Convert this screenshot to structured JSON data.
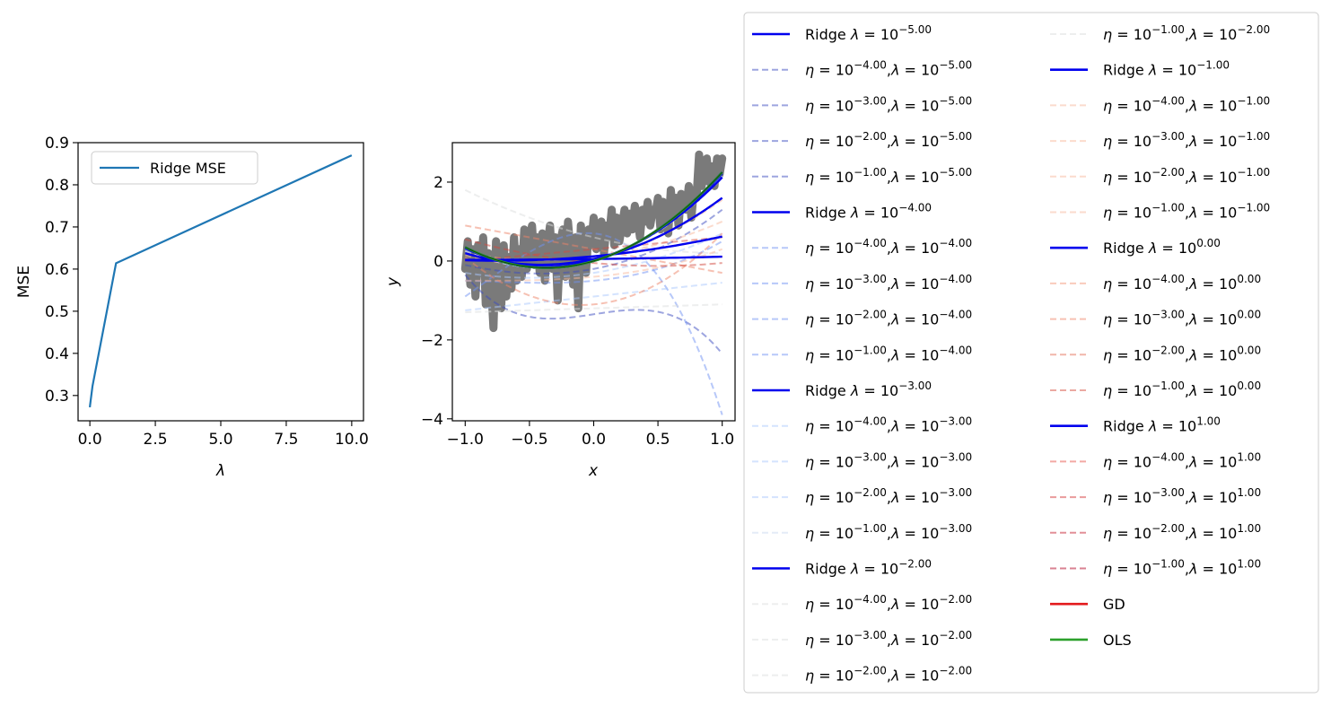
{
  "chart_data": [
    {
      "type": "line",
      "xlabel": "λ",
      "ylabel": "MSE",
      "xlim": [
        -0.45,
        10.45
      ],
      "ylim": [
        0.24,
        0.9
      ],
      "xticks": [
        0,
        2.5,
        5,
        7.5,
        10
      ],
      "xtick_labels": [
        "0.0",
        "2.5",
        "5.0",
        "7.5",
        "10.0"
      ],
      "yticks": [
        0.3,
        0.4,
        0.5,
        0.6,
        0.7,
        0.8,
        0.9
      ],
      "ytick_labels": [
        "0.3",
        "0.4",
        "0.5",
        "0.6",
        "0.7",
        "0.8",
        "0.9"
      ],
      "legend_position": "upper-left",
      "series": [
        {
          "name": "Ridge MSE",
          "color": "#1f77b4",
          "x": [
            1e-05,
            0.0001,
            0.001,
            0.01,
            0.1,
            1,
            10
          ],
          "y": [
            0.272,
            0.272,
            0.273,
            0.278,
            0.322,
            0.614,
            0.87
          ]
        }
      ]
    },
    {
      "type": "line",
      "xlabel": "x",
      "ylabel": "y",
      "xlim": [
        -1.1,
        1.1
      ],
      "ylim": [
        -4.05,
        3.0
      ],
      "xticks": [
        -1.0,
        -0.5,
        0.0,
        0.5,
        1.0
      ],
      "xtick_labels": [
        "−1.0",
        "−0.5",
        "0.0",
        "0.5",
        "1.0"
      ],
      "yticks": [
        -4,
        -2,
        0,
        2
      ],
      "ytick_labels": [
        "−4",
        "−2",
        "0",
        "2"
      ],
      "data_points": {
        "color": "#7a7a7a",
        "x": [
          -1.0,
          -0.98,
          -0.96,
          -0.94,
          -0.92,
          -0.9,
          -0.88,
          -0.86,
          -0.84,
          -0.82,
          -0.8,
          -0.78,
          -0.76,
          -0.74,
          -0.72,
          -0.7,
          -0.68,
          -0.66,
          -0.64,
          -0.62,
          -0.6,
          -0.58,
          -0.56,
          -0.54,
          -0.52,
          -0.5,
          -0.48,
          -0.46,
          -0.44,
          -0.42,
          -0.4,
          -0.38,
          -0.36,
          -0.34,
          -0.32,
          -0.3,
          -0.28,
          -0.26,
          -0.24,
          -0.22,
          -0.2,
          -0.18,
          -0.16,
          -0.14,
          -0.12,
          -0.1,
          -0.08,
          -0.06,
          -0.04,
          -0.02,
          0.0,
          0.02,
          0.04,
          0.06,
          0.08,
          0.1,
          0.12,
          0.14,
          0.16,
          0.18,
          0.2,
          0.22,
          0.24,
          0.26,
          0.28,
          0.3,
          0.32,
          0.34,
          0.36,
          0.38,
          0.4,
          0.42,
          0.44,
          0.46,
          0.48,
          0.5,
          0.52,
          0.54,
          0.56,
          0.58,
          0.6,
          0.62,
          0.64,
          0.66,
          0.68,
          0.7,
          0.72,
          0.74,
          0.76,
          0.78,
          0.8,
          0.82,
          0.84,
          0.86,
          0.88,
          0.9,
          0.92,
          0.94,
          0.96,
          0.98,
          1.0
        ],
        "y": [
          -0.2,
          0.5,
          -0.6,
          0.3,
          -0.9,
          0.4,
          -0.3,
          0.6,
          -1.1,
          0.2,
          -0.5,
          -1.7,
          0.5,
          -0.4,
          -1.2,
          0.4,
          -0.9,
          0.1,
          -0.7,
          0.6,
          -0.5,
          0.3,
          -0.4,
          0.8,
          -0.2,
          0.5,
          0.9,
          -0.1,
          0.6,
          -0.3,
          0.7,
          -0.5,
          0.4,
          0.9,
          -0.2,
          0.6,
          -1.0,
          0.5,
          0.8,
          -0.4,
          1.0,
          0.2,
          -0.6,
          0.6,
          -1.2,
          0.9,
          0.3,
          -0.3,
          0.8,
          0.4,
          1.1,
          0.3,
          0.8,
          1.0,
          0.2,
          0.9,
          0.6,
          1.3,
          0.4,
          1.1,
          0.5,
          0.9,
          1.3,
          0.7,
          1.2,
          0.8,
          1.4,
          1.1,
          0.6,
          1.3,
          1.0,
          1.5,
          0.9,
          1.3,
          1.2,
          1.6,
          0.8,
          1.5,
          1.4,
          0.7,
          1.8,
          1.2,
          1.6,
          0.9,
          1.7,
          1.5,
          1.3,
          1.9,
          1.1,
          1.8,
          1.6,
          2.7,
          1.9,
          2.2,
          2.6,
          2.0,
          2.4,
          1.9,
          2.6,
          2.2,
          2.6
        ]
      },
      "ridge_curves": [
        {
          "name": "Ridge λ = 10^-5.00",
          "color": "#0000ee",
          "coef": [
            0.0,
            0.95,
            1.3,
            0.0
          ]
        },
        {
          "name": "Ridge λ = 10^-4.00",
          "color": "#0000ee",
          "coef": [
            0.0,
            0.95,
            1.3,
            0.0
          ]
        },
        {
          "name": "Ridge λ = 10^-3.00",
          "color": "#0000ee",
          "coef": [
            0.0,
            0.94,
            1.28,
            0.0
          ]
        },
        {
          "name": "Ridge λ = 10^-2.00",
          "color": "#0000ee",
          "coef": [
            0.02,
            0.9,
            1.2,
            0.0
          ]
        },
        {
          "name": "Ridge λ = 10^-1.00",
          "color": "#0000ee",
          "coef": [
            0.05,
            0.7,
            0.85,
            0.0
          ]
        },
        {
          "name": "Ridge λ = 10^0.00",
          "color": "#0000ee",
          "coef": [
            0.12,
            0.3,
            0.2,
            0.0
          ]
        },
        {
          "name": "Ridge λ = 10^1.00",
          "color": "#0000ee",
          "coef": [
            0.05,
            0.04,
            0.02,
            0.0
          ]
        }
      ],
      "gd_curves": [
        {
          "name": "η = 10^-4.00, λ = 10^-5.00",
          "color": "#3b4cc0",
          "alpha": 0.5,
          "coef": [
            -1.35,
            0.5,
            0.0,
            -1.5
          ]
        },
        {
          "name": "η = 10^-3.00, λ = 10^-5.00",
          "color": "#3b4cc0",
          "alpha": 0.5,
          "coef": [
            -0.2,
            0.6,
            0.8,
            0.1
          ]
        },
        {
          "name": "η = 10^-2.00, λ = 10^-5.00",
          "color": "#3b4cc0",
          "alpha": 0.5,
          "coef": [
            0.0,
            0.9,
            1.2,
            0.05
          ]
        },
        {
          "name": "η = 10^-1.00, λ = 10^-5.00",
          "color": "#3b4cc0",
          "alpha": 0.5,
          "coef": [
            0.0,
            0.95,
            1.3,
            0.0
          ]
        },
        {
          "name": "η = 10^-4.00, λ = 10^-4.00",
          "color": "#6f92f3",
          "alpha": 0.5,
          "coef": [
            -0.5,
            0.3,
            0.5,
            0.2
          ]
        },
        {
          "name": "η = 10^-3.00, λ = 10^-4.00",
          "color": "#6f92f3",
          "alpha": 0.5,
          "coef": [
            0.7,
            -0.3,
            -3.1,
            -1.2
          ]
        },
        {
          "name": "η = 10^-2.00, λ = 10^-4.00",
          "color": "#6f92f3",
          "alpha": 0.5,
          "coef": [
            0.0,
            0.9,
            1.2,
            0.05
          ]
        },
        {
          "name": "η = 10^-1.00, λ = 10^-4.00",
          "color": "#6f92f3",
          "alpha": 0.5,
          "coef": [
            0.0,
            0.95,
            1.3,
            0.0
          ]
        },
        {
          "name": "η = 10^-4.00, λ = 10^-3.00",
          "color": "#aac7fd",
          "alpha": 0.5,
          "coef": [
            -0.9,
            0.35,
            0.0,
            0.0
          ]
        },
        {
          "name": "η = 10^-3.00, λ = 10^-3.00",
          "color": "#aac7fd",
          "alpha": 0.5,
          "coef": [
            -0.3,
            0.5,
            0.5,
            0.0
          ]
        },
        {
          "name": "η = 10^-2.00, λ = 10^-3.00",
          "color": "#aac7fd",
          "alpha": 0.5,
          "coef": [
            0.0,
            0.9,
            1.2,
            0.05
          ]
        },
        {
          "name": "η = 10^-1.00, λ = 10^-3.00",
          "color": "#aac7fd",
          "alpha": 0.5,
          "coef": [
            0.0,
            0.95,
            1.3,
            0.0
          ]
        },
        {
          "name": "η = 10^-4.00, λ = 10^-2.00",
          "color": "#dcdddd",
          "alpha": 0.5,
          "coef": [
            -1.2,
            0.1,
            0.0,
            0.0
          ]
        },
        {
          "name": "η = 10^-3.00, λ = 10^-2.00",
          "color": "#dcdddd",
          "alpha": 0.5,
          "coef": [
            0.6,
            -0.8,
            0.4,
            0.0
          ]
        },
        {
          "name": "η = 10^-2.00, λ = 10^-2.00",
          "color": "#dcdddd",
          "alpha": 0.5,
          "coef": [
            0.0,
            0.9,
            1.2,
            0.05
          ]
        },
        {
          "name": "η = 10^-1.00, λ = 10^-2.00",
          "color": "#dcdddd",
          "alpha": 0.5,
          "coef": [
            0.0,
            0.9,
            1.2,
            0.0
          ]
        },
        {
          "name": "η = 10^-4.00, λ = 10^-1.00",
          "color": "#f7b89c",
          "alpha": 0.5,
          "coef": [
            -0.4,
            0.3,
            0.3,
            0.1
          ]
        },
        {
          "name": "η = 10^-3.00, λ = 10^-1.00",
          "color": "#f7b89c",
          "alpha": 0.5,
          "coef": [
            0.1,
            0.4,
            0.5,
            0.0
          ]
        },
        {
          "name": "η = 10^-2.00, λ = 10^-1.00",
          "color": "#f7b89c",
          "alpha": 0.5,
          "coef": [
            0.05,
            0.7,
            0.8,
            0.0
          ]
        },
        {
          "name": "η = 10^-1.00, λ = 10^-1.00",
          "color": "#f7b89c",
          "alpha": 0.5,
          "coef": [
            0.05,
            0.7,
            0.85,
            0.0
          ]
        },
        {
          "name": "η = 10^-4.00, λ = 10^0.00",
          "color": "#ee8468",
          "alpha": 0.5,
          "coef": [
            -1.1,
            0.3,
            1.5,
            0.0
          ]
        },
        {
          "name": "η = 10^-3.00, λ = 10^0.00",
          "color": "#ee8468",
          "alpha": 0.5,
          "coef": [
            0.3,
            -0.6,
            0.0,
            0.0
          ]
        },
        {
          "name": "η = 10^-2.00, λ = 10^0.00",
          "color": "#ee8468",
          "alpha": 0.5,
          "coef": [
            0.12,
            0.3,
            0.2,
            0.0
          ]
        },
        {
          "name": "η = 10^-1.00, λ = 10^0.00",
          "color": "#ee8468",
          "alpha": 0.5,
          "coef": [
            0.12,
            0.3,
            0.2,
            0.0
          ]
        },
        {
          "name": "η = 10^-4.00, λ = 10^1.00",
          "color": "#d1493f",
          "alpha": 0.5,
          "coef": [
            0.3,
            0.3,
            0.0,
            0.0
          ]
        },
        {
          "name": "η = 10^-3.00, λ = 10^1.00",
          "color": "#d1493f",
          "alpha": 0.5,
          "coef": [
            -0.05,
            -0.3,
            0.3,
            0.0
          ]
        },
        {
          "name": "η = 10^-2.00, λ = 10^1.00",
          "color": "#b40426",
          "alpha": 0.5,
          "coef": [
            0.05,
            0.04,
            0.02,
            0.0
          ]
        },
        {
          "name": "η = 10^-1.00, λ = 10^1.00",
          "color": "#b40426",
          "alpha": 0.5,
          "coef": [
            0.05,
            0.04,
            0.02,
            0.0
          ]
        }
      ],
      "ols_curve": {
        "name": "OLS",
        "color": "#2ca02c",
        "coef": [
          0.0,
          0.95,
          1.3,
          0.0
        ]
      },
      "legend": {
        "position": "right",
        "columns": 2,
        "entries": [
          {
            "kind": "ridge",
            "label": "Ridge",
            "sym": "λ",
            "exp": "−5.00",
            "color": "#0000ee"
          },
          {
            "kind": "gd",
            "eta_exp": "−4.00",
            "lam_exp": "−5.00",
            "color": "#3b4cc0",
            "alpha": 0.5
          },
          {
            "kind": "gd",
            "eta_exp": "−3.00",
            "lam_exp": "−5.00",
            "color": "#3b4cc0",
            "alpha": 0.5
          },
          {
            "kind": "gd",
            "eta_exp": "−2.00",
            "lam_exp": "−5.00",
            "color": "#3b4cc0",
            "alpha": 0.5
          },
          {
            "kind": "gd",
            "eta_exp": "−1.00",
            "lam_exp": "−5.00",
            "color": "#3b4cc0",
            "alpha": 0.5
          },
          {
            "kind": "ridge",
            "label": "Ridge",
            "sym": "λ",
            "exp": "−4.00",
            "color": "#0000ee"
          },
          {
            "kind": "gd",
            "eta_exp": "−4.00",
            "lam_exp": "−4.00",
            "color": "#6f92f3",
            "alpha": 0.5
          },
          {
            "kind": "gd",
            "eta_exp": "−3.00",
            "lam_exp": "−4.00",
            "color": "#6f92f3",
            "alpha": 0.5
          },
          {
            "kind": "gd",
            "eta_exp": "−2.00",
            "lam_exp": "−4.00",
            "color": "#6f92f3",
            "alpha": 0.5
          },
          {
            "kind": "gd",
            "eta_exp": "−1.00",
            "lam_exp": "−4.00",
            "color": "#6f92f3",
            "alpha": 0.5
          },
          {
            "kind": "ridge",
            "label": "Ridge",
            "sym": "λ",
            "exp": "−3.00",
            "color": "#0000ee"
          },
          {
            "kind": "gd",
            "eta_exp": "−4.00",
            "lam_exp": "−3.00",
            "color": "#aac7fd",
            "alpha": 0.5
          },
          {
            "kind": "gd",
            "eta_exp": "−3.00",
            "lam_exp": "−3.00",
            "color": "#aac7fd",
            "alpha": 0.5
          },
          {
            "kind": "gd",
            "eta_exp": "−2.00",
            "lam_exp": "−3.00",
            "color": "#aac7fd",
            "alpha": 0.5
          },
          {
            "kind": "gd",
            "eta_exp": "−1.00",
            "lam_exp": "−3.00",
            "color": "#c9d7f0",
            "alpha": 0.5
          },
          {
            "kind": "ridge",
            "label": "Ridge",
            "sym": "λ",
            "exp": "−2.00",
            "color": "#0000ee"
          },
          {
            "kind": "gd",
            "eta_exp": "−4.00",
            "lam_exp": "−2.00",
            "color": "#dcdddd",
            "alpha": 0.5
          },
          {
            "kind": "gd",
            "eta_exp": "−3.00",
            "lam_exp": "−2.00",
            "color": "#dcdddd",
            "alpha": 0.5
          },
          {
            "kind": "gd",
            "eta_exp": "−2.00",
            "lam_exp": "−2.00",
            "color": "#dcdddd",
            "alpha": 0.5
          },
          {
            "kind": "gd",
            "eta_exp": "−1.00",
            "lam_exp": "−2.00",
            "color": "#dcdddd",
            "alpha": 0.5
          },
          {
            "kind": "ridge",
            "label": "Ridge",
            "sym": "λ",
            "exp": "−1.00",
            "color": "#0000ee"
          },
          {
            "kind": "gd",
            "eta_exp": "−4.00",
            "lam_exp": "−1.00",
            "color": "#f7b89c",
            "alpha": 0.5
          },
          {
            "kind": "gd",
            "eta_exp": "−3.00",
            "lam_exp": "−1.00",
            "color": "#f7b89c",
            "alpha": 0.5
          },
          {
            "kind": "gd",
            "eta_exp": "−2.00",
            "lam_exp": "−1.00",
            "color": "#f7b89c",
            "alpha": 0.5
          },
          {
            "kind": "gd",
            "eta_exp": "−1.00",
            "lam_exp": "−1.00",
            "color": "#f7b89c",
            "alpha": 0.5
          },
          {
            "kind": "ridge",
            "label": "Ridge",
            "sym": "λ",
            "exp": "0.00",
            "color": "#0000ee"
          },
          {
            "kind": "gd",
            "eta_exp": "−4.00",
            "lam_exp": "0.00",
            "color": "#f4987a",
            "alpha": 0.5
          },
          {
            "kind": "gd",
            "eta_exp": "−3.00",
            "lam_exp": "0.00",
            "color": "#ee8468",
            "alpha": 0.5
          },
          {
            "kind": "gd",
            "eta_exp": "−2.00",
            "lam_exp": "0.00",
            "color": "#e46e56",
            "alpha": 0.5
          },
          {
            "kind": "gd",
            "eta_exp": "−1.00",
            "lam_exp": "0.00",
            "color": "#d75445",
            "alpha": 0.5
          },
          {
            "kind": "ridge",
            "label": "Ridge",
            "sym": "λ",
            "exp": "1.00",
            "color": "#0000ee"
          },
          {
            "kind": "gd",
            "eta_exp": "−4.00",
            "lam_exp": "1.00",
            "color": "#e7534a",
            "alpha": 0.5
          },
          {
            "kind": "gd",
            "eta_exp": "−3.00",
            "lam_exp": "1.00",
            "color": "#d6383a",
            "alpha": 0.5
          },
          {
            "kind": "gd",
            "eta_exp": "−2.00",
            "lam_exp": "1.00",
            "color": "#c52232",
            "alpha": 0.5
          },
          {
            "kind": "gd",
            "eta_exp": "−1.00",
            "lam_exp": "1.00",
            "color": "#b40426",
            "alpha": 0.5
          },
          {
            "kind": "plain",
            "label": "GD",
            "color": "#e31a1c"
          },
          {
            "kind": "plain",
            "label": "OLS",
            "color": "#2ca02c"
          }
        ]
      }
    }
  ]
}
